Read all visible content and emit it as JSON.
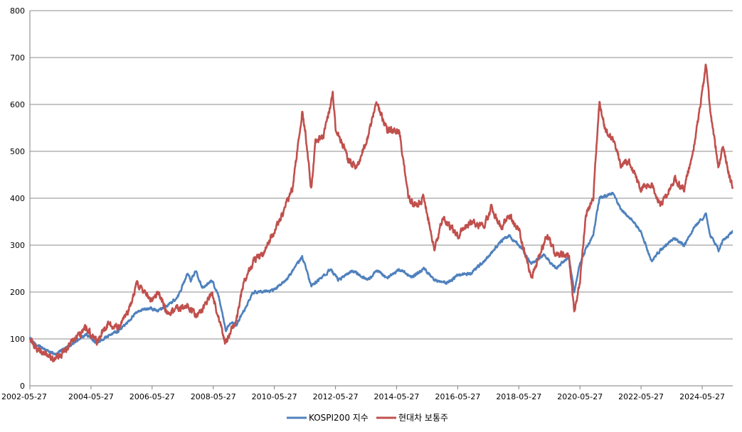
{
  "chart_data": {
    "type": "line",
    "title": "",
    "xlabel": "",
    "ylabel": "",
    "ylim": [
      0,
      800
    ],
    "yticks": [
      0,
      100,
      200,
      300,
      400,
      500,
      600,
      700,
      800
    ],
    "xrange": [
      "2002-05-27",
      "2025-05-27"
    ],
    "xticks": [
      "2002-05-27",
      "2004-05-27",
      "2006-05-27",
      "2008-05-27",
      "2010-05-27",
      "2012-05-27",
      "2014-05-27",
      "2016-05-27",
      "2018-05-27",
      "2020-05-27",
      "2022-05-27",
      "2024-05-27"
    ],
    "grid": "horizontal",
    "legend": "bottom-center",
    "series": [
      {
        "name": "KOSPI200 지수",
        "color": "#4F81BD",
        "points": [
          [
            "2002-05-27",
            100
          ],
          [
            "2002-09-01",
            85
          ],
          [
            "2002-12-01",
            78
          ],
          [
            "2003-03-15",
            68
          ],
          [
            "2003-06-01",
            75
          ],
          [
            "2003-09-01",
            85
          ],
          [
            "2003-12-01",
            95
          ],
          [
            "2004-04-01",
            108
          ],
          [
            "2004-08-01",
            92
          ],
          [
            "2004-12-01",
            105
          ],
          [
            "2005-05-01",
            118
          ],
          [
            "2005-09-01",
            140
          ],
          [
            "2005-12-01",
            160
          ],
          [
            "2006-05-15",
            165
          ],
          [
            "2006-08-01",
            160
          ],
          [
            "2006-12-01",
            172
          ],
          [
            "2007-04-01",
            190
          ],
          [
            "2007-07-25",
            240
          ],
          [
            "2007-09-01",
            225
          ],
          [
            "2007-11-01",
            245
          ],
          [
            "2008-01-15",
            210
          ],
          [
            "2008-05-15",
            225
          ],
          [
            "2008-08-01",
            190
          ],
          [
            "2008-10-25",
            118
          ],
          [
            "2008-12-15",
            135
          ],
          [
            "2009-03-01",
            130
          ],
          [
            "2009-05-27",
            160
          ],
          [
            "2009-09-15",
            200
          ],
          [
            "2010-01-15",
            200
          ],
          [
            "2010-05-27",
            205
          ],
          [
            "2010-10-01",
            225
          ],
          [
            "2011-01-01",
            245
          ],
          [
            "2011-04-25",
            275
          ],
          [
            "2011-08-10",
            215
          ],
          [
            "2011-10-01",
            220
          ],
          [
            "2012-04-01",
            248
          ],
          [
            "2012-07-01",
            225
          ],
          [
            "2012-12-15",
            245
          ],
          [
            "2013-06-15",
            225
          ],
          [
            "2013-10-01",
            245
          ],
          [
            "2014-02-01",
            230
          ],
          [
            "2014-07-01",
            248
          ],
          [
            "2014-12-01",
            232
          ],
          [
            "2015-04-20",
            250
          ],
          [
            "2015-08-25",
            225
          ],
          [
            "2016-02-01",
            220
          ],
          [
            "2016-05-27",
            235
          ],
          [
            "2016-11-01",
            240
          ],
          [
            "2017-05-01",
            270
          ],
          [
            "2017-11-01",
            310
          ],
          [
            "2018-01-29",
            320
          ],
          [
            "2018-06-01",
            300
          ],
          [
            "2018-10-25",
            260
          ],
          [
            "2019-04-01",
            280
          ],
          [
            "2019-08-10",
            250
          ],
          [
            "2020-01-15",
            275
          ],
          [
            "2020-03-19",
            200
          ],
          [
            "2020-05-27",
            260
          ],
          [
            "2020-08-01",
            290
          ],
          [
            "2020-11-01",
            320
          ],
          [
            "2021-01-15",
            400
          ],
          [
            "2021-06-25",
            410
          ],
          [
            "2021-10-01",
            375
          ],
          [
            "2022-01-01",
            360
          ],
          [
            "2022-05-27",
            330
          ],
          [
            "2022-09-30",
            265
          ],
          [
            "2023-01-15",
            290
          ],
          [
            "2023-07-01",
            315
          ],
          [
            "2023-10-25",
            300
          ],
          [
            "2024-03-01",
            340
          ],
          [
            "2024-07-11",
            365
          ],
          [
            "2024-09-01",
            320
          ],
          [
            "2024-12-09",
            290
          ],
          [
            "2025-02-01",
            310
          ],
          [
            "2025-05-27",
            330
          ]
        ]
      },
      {
        "name": "현대차 보통주",
        "color": "#C0504D",
        "points": [
          [
            "2002-05-27",
            100
          ],
          [
            "2002-09-01",
            78
          ],
          [
            "2002-12-01",
            72
          ],
          [
            "2003-03-15",
            55
          ],
          [
            "2003-06-01",
            65
          ],
          [
            "2003-09-01",
            85
          ],
          [
            "2003-12-01",
            100
          ],
          [
            "2004-04-01",
            125
          ],
          [
            "2004-08-01",
            95
          ],
          [
            "2004-12-01",
            130
          ],
          [
            "2005-05-01",
            125
          ],
          [
            "2005-09-01",
            165
          ],
          [
            "2005-12-01",
            220
          ],
          [
            "2006-03-01",
            200
          ],
          [
            "2006-05-15",
            180
          ],
          [
            "2006-08-01",
            200
          ],
          [
            "2006-12-01",
            155
          ],
          [
            "2007-04-01",
            165
          ],
          [
            "2007-07-25",
            170
          ],
          [
            "2007-11-01",
            150
          ],
          [
            "2008-01-15",
            160
          ],
          [
            "2008-05-15",
            200
          ],
          [
            "2008-08-01",
            140
          ],
          [
            "2008-10-25",
            90
          ],
          [
            "2008-12-15",
            115
          ],
          [
            "2009-03-01",
            140
          ],
          [
            "2009-05-27",
            220
          ],
          [
            "2009-09-15",
            265
          ],
          [
            "2010-01-15",
            280
          ],
          [
            "2010-05-27",
            330
          ],
          [
            "2010-10-01",
            380
          ],
          [
            "2011-01-01",
            425
          ],
          [
            "2011-04-25",
            585
          ],
          [
            "2011-06-01",
            545
          ],
          [
            "2011-08-10",
            420
          ],
          [
            "2011-10-01",
            520
          ],
          [
            "2012-01-01",
            530
          ],
          [
            "2012-04-25",
            620
          ],
          [
            "2012-06-01",
            545
          ],
          [
            "2012-08-15",
            520
          ],
          [
            "2012-11-01",
            480
          ],
          [
            "2013-02-15",
            470
          ],
          [
            "2013-06-15",
            530
          ],
          [
            "2013-10-01",
            605
          ],
          [
            "2014-02-01",
            545
          ],
          [
            "2014-07-01",
            540
          ],
          [
            "2014-10-15",
            400
          ],
          [
            "2015-01-15",
            385
          ],
          [
            "2015-04-20",
            400
          ],
          [
            "2015-08-25",
            290
          ],
          [
            "2015-12-01",
            360
          ],
          [
            "2016-05-27",
            320
          ],
          [
            "2016-11-01",
            350
          ],
          [
            "2017-04-01",
            340
          ],
          [
            "2017-07-01",
            380
          ],
          [
            "2017-11-01",
            340
          ],
          [
            "2018-01-29",
            365
          ],
          [
            "2018-06-01",
            330
          ],
          [
            "2018-10-25",
            230
          ],
          [
            "2019-02-01",
            280
          ],
          [
            "2019-05-01",
            320
          ],
          [
            "2019-08-10",
            280
          ],
          [
            "2020-01-15",
            280
          ],
          [
            "2020-03-19",
            160
          ],
          [
            "2020-05-27",
            220
          ],
          [
            "2020-08-01",
            360
          ],
          [
            "2020-11-01",
            400
          ],
          [
            "2021-01-15",
            610
          ],
          [
            "2021-04-01",
            540
          ],
          [
            "2021-06-25",
            530
          ],
          [
            "2021-10-01",
            470
          ],
          [
            "2022-01-01",
            480
          ],
          [
            "2022-05-27",
            420
          ],
          [
            "2022-09-30",
            430
          ],
          [
            "2023-01-15",
            380
          ],
          [
            "2023-07-01",
            440
          ],
          [
            "2023-10-25",
            420
          ],
          [
            "2024-03-01",
            520
          ],
          [
            "2024-07-11",
            685
          ],
          [
            "2024-09-01",
            580
          ],
          [
            "2024-12-09",
            470
          ],
          [
            "2025-02-01",
            510
          ],
          [
            "2025-05-27",
            420
          ]
        ]
      }
    ]
  }
}
